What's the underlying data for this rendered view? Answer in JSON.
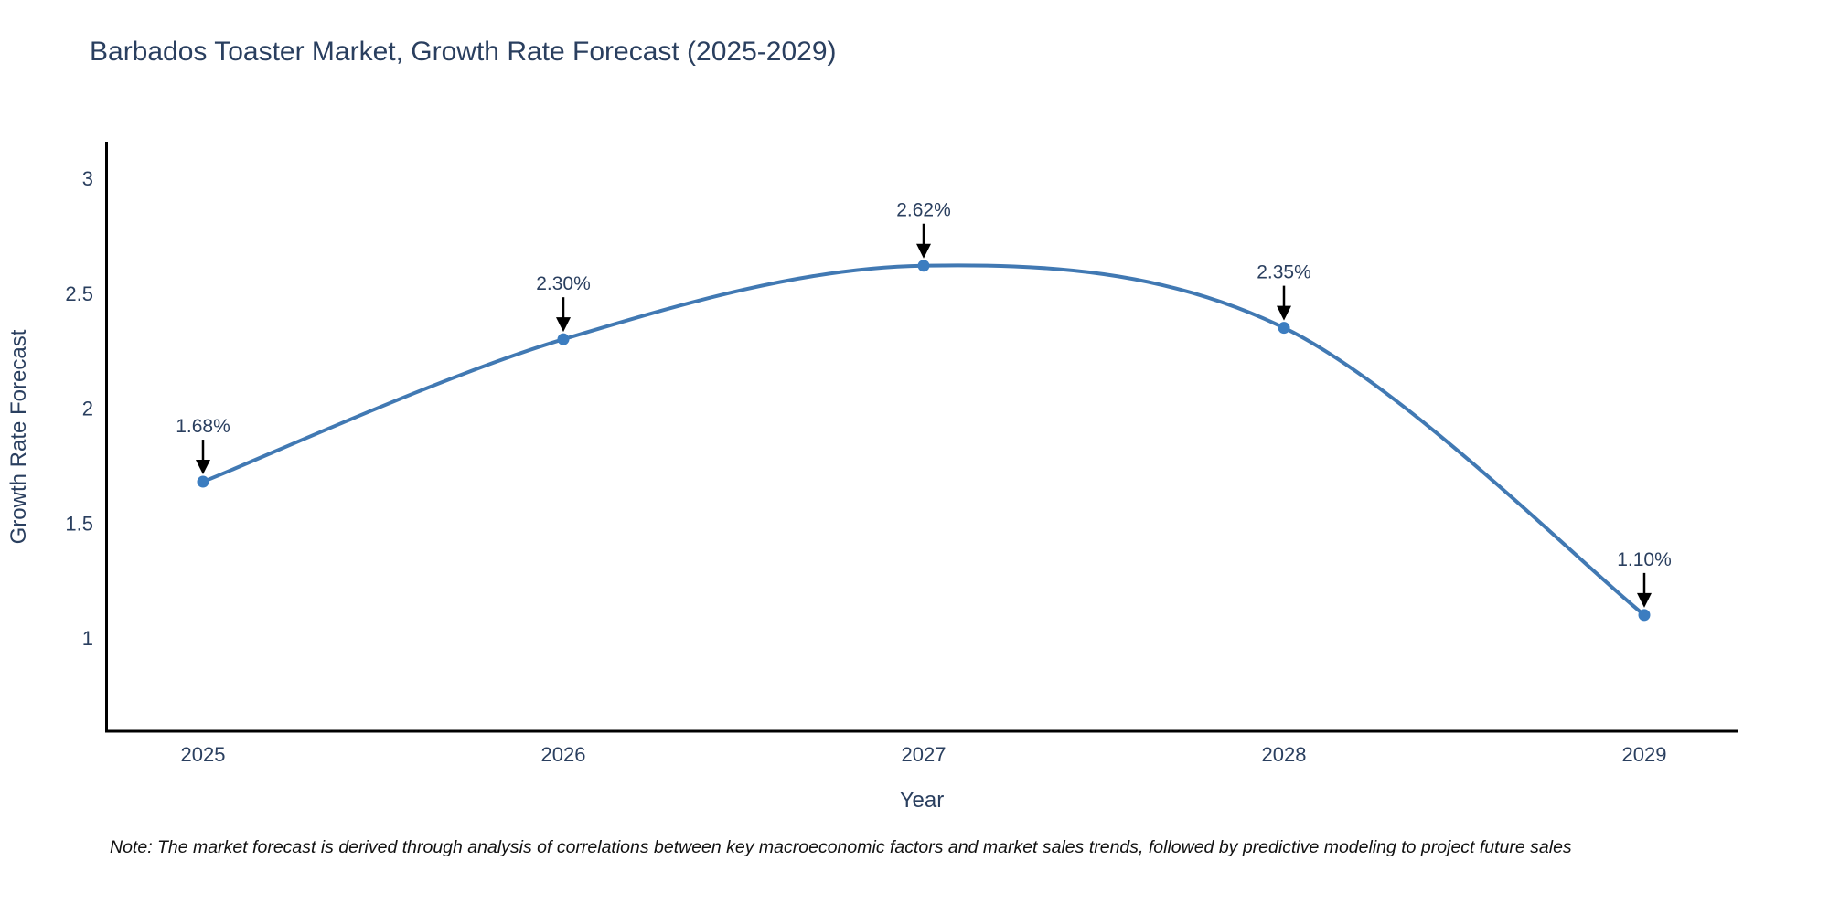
{
  "chart_data": {
    "type": "line",
    "title": "Barbados Toaster Market, Growth Rate Forecast (2025-2029)",
    "xlabel": "Year",
    "ylabel": "Growth Rate Forecast",
    "x": [
      2025,
      2026,
      2027,
      2028,
      2029
    ],
    "values": [
      1.68,
      2.3,
      2.62,
      2.35,
      1.1
    ],
    "point_labels": [
      "1.68%",
      "2.30%",
      "2.62%",
      "2.35%",
      "1.10%"
    ],
    "series_name": "Growth Rate Forecast",
    "y_ticks": [
      1,
      1.5,
      2,
      2.5,
      3
    ],
    "y_tick_labels": [
      "1",
      "1.5",
      "2",
      "2.5",
      "3"
    ],
    "ylim": [
      0.6,
      3.16
    ],
    "grid": false,
    "legend": "none",
    "line_shape": "spline",
    "line_color": "#4179b3",
    "marker_color": "#3c7dc0",
    "axis_color": "#000000",
    "text_color": "#2a3f5f",
    "annotation_arrow_color": "#000000",
    "note": "Note: The market forecast is derived through analysis of correlations between key macroeconomic factors and market sales trends, followed by predictive modeling to project future sales"
  }
}
